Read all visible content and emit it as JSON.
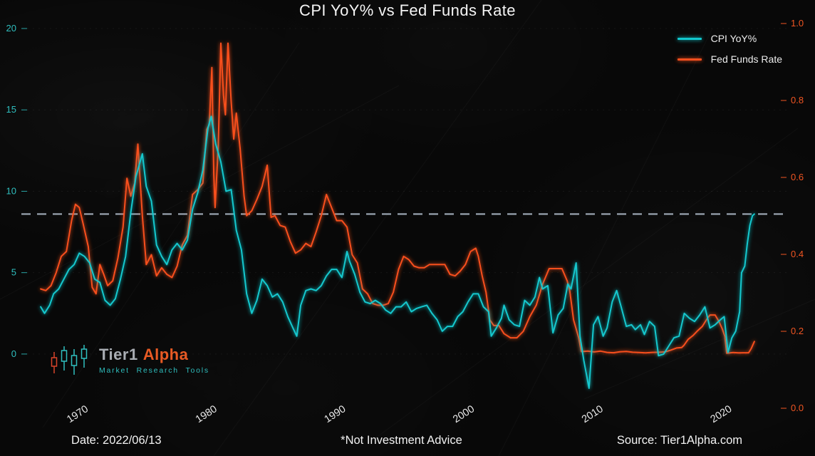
{
  "title": "CPI YoY% vs Fed Funds Rate",
  "footer": {
    "date": "Date: 2022/06/13",
    "disclaimer": "*Not Investment Advice",
    "source": "Source: Tier1Alpha.com"
  },
  "logo": {
    "tier1": "Tier1",
    "alpha": "Alpha",
    "subtitle": "Market Research Tools"
  },
  "axes": {
    "left": {
      "ticks": [
        0,
        5,
        10,
        15,
        20
      ],
      "color": "#2fbfbf"
    },
    "right": {
      "ticks": [
        "1.0",
        "0.8",
        "0.6",
        "0.4",
        "0.2",
        "0.0"
      ],
      "color": "#f05522"
    },
    "x": {
      "ticks": [
        "1970",
        "1980",
        "1990",
        "2000",
        "2010",
        "2020"
      ],
      "color": "#e8e8e8"
    }
  },
  "chart_data": {
    "type": "line",
    "title": "CPI YoY% vs Fed Funds Rate",
    "xlabel": "",
    "ylabel": "",
    "xlim": [
      1965.5,
      2025
    ],
    "ylim": [
      -3.2,
      20
    ],
    "grid": "faint-horizontal",
    "legend_position": "top-right",
    "reference_line": {
      "value": 8.6,
      "style": "dashed",
      "color": "#a9b4c2"
    },
    "series": [
      {
        "name": "CPI YoY%",
        "color": "#12c8ce",
        "points": [
          [
            1967.0,
            2.9
          ],
          [
            1967.3,
            2.5
          ],
          [
            1967.7,
            3.0
          ],
          [
            1968.0,
            3.7
          ],
          [
            1968.4,
            4.0
          ],
          [
            1968.8,
            4.6
          ],
          [
            1969.2,
            5.2
          ],
          [
            1969.6,
            5.5
          ],
          [
            1970.0,
            6.2
          ],
          [
            1970.4,
            6.0
          ],
          [
            1970.8,
            5.6
          ],
          [
            1971.2,
            4.6
          ],
          [
            1971.6,
            4.4
          ],
          [
            1972.0,
            3.3
          ],
          [
            1972.4,
            3.0
          ],
          [
            1972.8,
            3.4
          ],
          [
            1973.2,
            4.6
          ],
          [
            1973.6,
            6.0
          ],
          [
            1974.0,
            8.7
          ],
          [
            1974.4,
            10.9
          ],
          [
            1974.9,
            12.3
          ],
          [
            1975.2,
            10.3
          ],
          [
            1975.6,
            9.4
          ],
          [
            1976.0,
            6.7
          ],
          [
            1976.4,
            6.0
          ],
          [
            1976.8,
            5.5
          ],
          [
            1977.2,
            6.4
          ],
          [
            1977.6,
            6.8
          ],
          [
            1978.0,
            6.4
          ],
          [
            1978.4,
            7.0
          ],
          [
            1978.8,
            8.9
          ],
          [
            1979.2,
            9.9
          ],
          [
            1979.6,
            11.3
          ],
          [
            1980.0,
            13.9
          ],
          [
            1980.25,
            14.6
          ],
          [
            1980.6,
            12.9
          ],
          [
            1981.0,
            11.8
          ],
          [
            1981.4,
            10.0
          ],
          [
            1981.8,
            10.1
          ],
          [
            1982.2,
            7.6
          ],
          [
            1982.6,
            6.4
          ],
          [
            1983.0,
            3.7
          ],
          [
            1983.4,
            2.5
          ],
          [
            1983.8,
            3.3
          ],
          [
            1984.2,
            4.6
          ],
          [
            1984.6,
            4.2
          ],
          [
            1985.0,
            3.5
          ],
          [
            1985.4,
            3.7
          ],
          [
            1985.8,
            3.2
          ],
          [
            1986.2,
            2.3
          ],
          [
            1986.6,
            1.6
          ],
          [
            1986.9,
            1.1
          ],
          [
            1987.2,
            3.0
          ],
          [
            1987.6,
            3.9
          ],
          [
            1988.0,
            4.0
          ],
          [
            1988.4,
            3.9
          ],
          [
            1988.8,
            4.2
          ],
          [
            1989.2,
            4.8
          ],
          [
            1989.6,
            5.2
          ],
          [
            1990.0,
            5.2
          ],
          [
            1990.4,
            4.7
          ],
          [
            1990.8,
            6.3
          ],
          [
            1991.0,
            5.7
          ],
          [
            1991.4,
            4.9
          ],
          [
            1991.8,
            3.8
          ],
          [
            1992.2,
            3.2
          ],
          [
            1992.6,
            3.1
          ],
          [
            1993.0,
            3.3
          ],
          [
            1993.4,
            3.1
          ],
          [
            1993.8,
            2.7
          ],
          [
            1994.2,
            2.5
          ],
          [
            1994.6,
            2.9
          ],
          [
            1995.0,
            2.9
          ],
          [
            1995.4,
            3.2
          ],
          [
            1995.8,
            2.6
          ],
          [
            1996.2,
            2.8
          ],
          [
            1996.6,
            2.9
          ],
          [
            1997.0,
            3.0
          ],
          [
            1997.4,
            2.5
          ],
          [
            1997.8,
            2.1
          ],
          [
            1998.2,
            1.4
          ],
          [
            1998.6,
            1.7
          ],
          [
            1999.0,
            1.7
          ],
          [
            1999.4,
            2.3
          ],
          [
            1999.8,
            2.6
          ],
          [
            2000.2,
            3.2
          ],
          [
            2000.6,
            3.7
          ],
          [
            2001.0,
            3.7
          ],
          [
            2001.4,
            2.9
          ],
          [
            2001.8,
            2.6
          ],
          [
            2002.0,
            1.1
          ],
          [
            2002.4,
            1.6
          ],
          [
            2002.8,
            2.2
          ],
          [
            2003.0,
            3.0
          ],
          [
            2003.4,
            2.1
          ],
          [
            2003.8,
            1.8
          ],
          [
            2004.2,
            1.7
          ],
          [
            2004.6,
            3.3
          ],
          [
            2005.0,
            3.0
          ],
          [
            2005.4,
            3.5
          ],
          [
            2005.75,
            4.7
          ],
          [
            2006.0,
            4.0
          ],
          [
            2006.4,
            4.2
          ],
          [
            2006.8,
            1.3
          ],
          [
            2007.2,
            2.4
          ],
          [
            2007.6,
            2.8
          ],
          [
            2007.95,
            4.3
          ],
          [
            2008.2,
            4.0
          ],
          [
            2008.6,
            5.6
          ],
          [
            2008.9,
            1.1
          ],
          [
            2009.2,
            -0.4
          ],
          [
            2009.6,
            -2.1
          ],
          [
            2009.95,
            1.8
          ],
          [
            2010.3,
            2.3
          ],
          [
            2010.7,
            1.1
          ],
          [
            2011.0,
            1.6
          ],
          [
            2011.4,
            3.2
          ],
          [
            2011.75,
            3.9
          ],
          [
            2012.1,
            2.9
          ],
          [
            2012.5,
            1.7
          ],
          [
            2012.9,
            1.8
          ],
          [
            2013.2,
            1.5
          ],
          [
            2013.6,
            1.8
          ],
          [
            2013.9,
            1.2
          ],
          [
            2014.3,
            2.0
          ],
          [
            2014.7,
            1.7
          ],
          [
            2015.0,
            -0.1
          ],
          [
            2015.4,
            0.0
          ],
          [
            2015.8,
            0.5
          ],
          [
            2016.2,
            1.0
          ],
          [
            2016.6,
            1.1
          ],
          [
            2017.0,
            2.5
          ],
          [
            2017.4,
            2.2
          ],
          [
            2017.8,
            2.0
          ],
          [
            2018.2,
            2.4
          ],
          [
            2018.6,
            2.9
          ],
          [
            2019.0,
            1.6
          ],
          [
            2019.4,
            1.8
          ],
          [
            2019.8,
            2.1
          ],
          [
            2020.1,
            2.3
          ],
          [
            2020.4,
            0.1
          ],
          [
            2020.7,
            1.0
          ],
          [
            2021.0,
            1.4
          ],
          [
            2021.3,
            2.6
          ],
          [
            2021.45,
            5.0
          ],
          [
            2021.7,
            5.4
          ],
          [
            2021.9,
            6.8
          ],
          [
            2022.1,
            7.9
          ],
          [
            2022.3,
            8.5
          ],
          [
            2022.45,
            8.6
          ]
        ]
      },
      {
        "name": "Fed Funds Rate",
        "color": "#f84f1e",
        "points": [
          [
            1967.0,
            4.0
          ],
          [
            1967.4,
            3.9
          ],
          [
            1967.8,
            4.2
          ],
          [
            1968.2,
            5.0
          ],
          [
            1968.6,
            6.0
          ],
          [
            1969.0,
            6.3
          ],
          [
            1969.4,
            8.2
          ],
          [
            1969.7,
            9.2
          ],
          [
            1970.0,
            9.0
          ],
          [
            1970.3,
            8.0
          ],
          [
            1970.7,
            6.6
          ],
          [
            1971.0,
            4.1
          ],
          [
            1971.3,
            3.7
          ],
          [
            1971.6,
            5.5
          ],
          [
            1971.9,
            4.9
          ],
          [
            1972.2,
            4.2
          ],
          [
            1972.6,
            4.5
          ],
          [
            1973.0,
            5.9
          ],
          [
            1973.4,
            7.8
          ],
          [
            1973.7,
            10.8
          ],
          [
            1974.0,
            9.7
          ],
          [
            1974.3,
            10.5
          ],
          [
            1974.55,
            12.9
          ],
          [
            1974.9,
            8.5
          ],
          [
            1975.2,
            5.5
          ],
          [
            1975.6,
            6.1
          ],
          [
            1976.0,
            4.8
          ],
          [
            1976.4,
            5.3
          ],
          [
            1976.8,
            4.9
          ],
          [
            1977.2,
            4.7
          ],
          [
            1977.6,
            5.4
          ],
          [
            1978.0,
            6.7
          ],
          [
            1978.4,
            7.3
          ],
          [
            1978.8,
            9.8
          ],
          [
            1979.2,
            10.1
          ],
          [
            1979.6,
            10.5
          ],
          [
            1979.9,
            13.8
          ],
          [
            1980.1,
            14.1
          ],
          [
            1980.3,
            17.6
          ],
          [
            1980.45,
            11.0
          ],
          [
            1980.55,
            9.0
          ],
          [
            1980.8,
            12.8
          ],
          [
            1981.0,
            19.1
          ],
          [
            1981.2,
            15.9
          ],
          [
            1981.35,
            14.7
          ],
          [
            1981.55,
            19.1
          ],
          [
            1981.8,
            15.5
          ],
          [
            1982.0,
            13.2
          ],
          [
            1982.2,
            14.8
          ],
          [
            1982.5,
            12.6
          ],
          [
            1982.8,
            9.7
          ],
          [
            1983.0,
            8.5
          ],
          [
            1983.4,
            8.8
          ],
          [
            1983.8,
            9.5
          ],
          [
            1984.2,
            10.3
          ],
          [
            1984.6,
            11.6
          ],
          [
            1984.9,
            8.4
          ],
          [
            1985.2,
            8.5
          ],
          [
            1985.6,
            7.9
          ],
          [
            1986.0,
            7.8
          ],
          [
            1986.4,
            6.9
          ],
          [
            1986.8,
            6.2
          ],
          [
            1987.2,
            6.4
          ],
          [
            1987.6,
            6.8
          ],
          [
            1988.0,
            6.6
          ],
          [
            1988.4,
            7.5
          ],
          [
            1988.8,
            8.5
          ],
          [
            1989.2,
            9.8
          ],
          [
            1989.6,
            9.0
          ],
          [
            1990.0,
            8.2
          ],
          [
            1990.4,
            8.2
          ],
          [
            1990.8,
            7.8
          ],
          [
            1991.2,
            6.1
          ],
          [
            1991.6,
            5.6
          ],
          [
            1992.0,
            4.0
          ],
          [
            1992.4,
            3.7
          ],
          [
            1992.8,
            3.1
          ],
          [
            1993.2,
            3.0
          ],
          [
            1993.6,
            3.0
          ],
          [
            1994.0,
            3.1
          ],
          [
            1994.4,
            3.8
          ],
          [
            1994.8,
            5.2
          ],
          [
            1995.2,
            6.0
          ],
          [
            1995.6,
            5.8
          ],
          [
            1996.0,
            5.4
          ],
          [
            1996.4,
            5.3
          ],
          [
            1996.8,
            5.3
          ],
          [
            1997.2,
            5.5
          ],
          [
            1997.6,
            5.5
          ],
          [
            1998.0,
            5.5
          ],
          [
            1998.4,
            5.5
          ],
          [
            1998.8,
            4.9
          ],
          [
            1999.2,
            4.8
          ],
          [
            1999.6,
            5.1
          ],
          [
            2000.0,
            5.5
          ],
          [
            2000.4,
            6.3
          ],
          [
            2000.8,
            6.5
          ],
          [
            2001.0,
            6.0
          ],
          [
            2001.3,
            4.8
          ],
          [
            2001.6,
            3.8
          ],
          [
            2001.9,
            2.1
          ],
          [
            2002.2,
            1.75
          ],
          [
            2002.6,
            1.75
          ],
          [
            2003.0,
            1.25
          ],
          [
            2003.5,
            1.0
          ],
          [
            2004.0,
            1.0
          ],
          [
            2004.5,
            1.4
          ],
          [
            2005.0,
            2.3
          ],
          [
            2005.5,
            3.0
          ],
          [
            2006.0,
            4.3
          ],
          [
            2006.5,
            5.25
          ],
          [
            2007.0,
            5.25
          ],
          [
            2007.5,
            5.25
          ],
          [
            2007.9,
            4.5
          ],
          [
            2008.1,
            3.9
          ],
          [
            2008.4,
            2.1
          ],
          [
            2008.8,
            1.0
          ],
          [
            2009.0,
            0.15
          ],
          [
            2009.5,
            0.18
          ],
          [
            2010.0,
            0.13
          ],
          [
            2010.5,
            0.18
          ],
          [
            2011.0,
            0.1
          ],
          [
            2011.5,
            0.08
          ],
          [
            2012.0,
            0.14
          ],
          [
            2012.5,
            0.16
          ],
          [
            2013.0,
            0.11
          ],
          [
            2013.5,
            0.09
          ],
          [
            2014.0,
            0.07
          ],
          [
            2014.5,
            0.1
          ],
          [
            2015.0,
            0.11
          ],
          [
            2015.5,
            0.13
          ],
          [
            2015.95,
            0.24
          ],
          [
            2016.4,
            0.37
          ],
          [
            2016.8,
            0.4
          ],
          [
            2016.98,
            0.54
          ],
          [
            2017.3,
            0.9
          ],
          [
            2017.7,
            1.15
          ],
          [
            2018.0,
            1.4
          ],
          [
            2018.4,
            1.7
          ],
          [
            2018.8,
            2.2
          ],
          [
            2019.0,
            2.4
          ],
          [
            2019.4,
            2.4
          ],
          [
            2019.7,
            2.0
          ],
          [
            2019.95,
            1.55
          ],
          [
            2020.15,
            1.1
          ],
          [
            2020.3,
            0.05
          ],
          [
            2020.8,
            0.09
          ],
          [
            2021.2,
            0.07
          ],
          [
            2021.6,
            0.08
          ],
          [
            2022.0,
            0.08
          ],
          [
            2022.2,
            0.33
          ],
          [
            2022.45,
            0.77
          ]
        ]
      }
    ]
  }
}
